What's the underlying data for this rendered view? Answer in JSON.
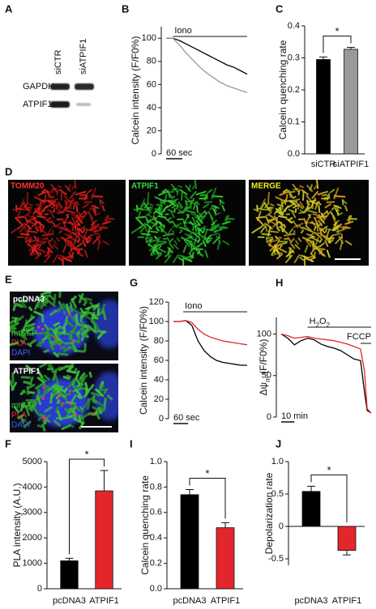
{
  "panel_letters": [
    "A",
    "B",
    "C",
    "D",
    "E",
    "F",
    "G",
    "H",
    "I",
    "J"
  ],
  "blot": {
    "lanes": [
      "siCTR",
      "siATPIF1"
    ],
    "rows": [
      "GAPDH",
      "ATPIF1"
    ]
  },
  "micrograph_d": {
    "channels": [
      "TOMM20",
      "ATPIF1",
      "MERGE"
    ]
  },
  "micrograph_e": {
    "panels": [
      {
        "title": "pcDNA3",
        "stains": [
          "mtGFP",
          "PLA",
          "DAPI"
        ]
      },
      {
        "title": "ATPIF1",
        "stains": [
          "mtGFP",
          "PLA",
          "DAPI"
        ]
      }
    ]
  },
  "chart_data": [
    {
      "type": "line",
      "y_label": "Calcein intensity (F/F0%)",
      "x": [
        0,
        25,
        50,
        75,
        100,
        125,
        150,
        175,
        200,
        225,
        250,
        275,
        300
      ],
      "xlim": [
        0,
        300
      ],
      "ylim": [
        0,
        110
      ],
      "yticks": [
        0,
        20,
        40,
        60,
        80,
        100
      ],
      "series": [
        {
          "color": "#000000",
          "values": [
            100,
            100,
            98,
            95,
            92,
            89,
            86,
            83,
            80,
            77,
            75,
            72,
            69
          ]
        },
        {
          "color": "#999999",
          "values": [
            100,
            100,
            94,
            87,
            81,
            75,
            70,
            66,
            62,
            59,
            57,
            55,
            53
          ]
        }
      ],
      "treatments": [
        {
          "label": "Iono",
          "start": 25,
          "end": 300
        }
      ],
      "scale_bar": {
        "label": "60 sec",
        "length": 60
      }
    },
    {
      "type": "bar",
      "y_label": "Calcein quenching rate",
      "categories": [
        "siCTR",
        "siATPIF1"
      ],
      "values": [
        0.295,
        0.327
      ],
      "errors": [
        0.008,
        0.006
      ],
      "colors": [
        "#000000",
        "#999999"
      ],
      "ylim": [
        0,
        0.4
      ],
      "yticks": [
        {
          "value": 0,
          "label": "0.0"
        },
        0.1,
        0.2,
        0.3,
        0.4
      ],
      "significance": "*"
    },
    {
      "type": "line",
      "y_label": "Calcein intensity (F/F0%)",
      "x": [
        0,
        25,
        50,
        75,
        100,
        125,
        150,
        175,
        200,
        225,
        250,
        275,
        300
      ],
      "xlim": [
        0,
        300
      ],
      "ylim": [
        0,
        120
      ],
      "yticks": [
        0,
        20,
        40,
        60,
        80,
        100,
        120
      ],
      "series": [
        {
          "color": "#000000",
          "values": [
            100,
            100,
            101,
            96,
            80,
            70,
            64,
            60,
            58,
            57,
            56,
            55,
            55
          ]
        },
        {
          "color": "#e3262b",
          "values": [
            100,
            100,
            101,
            99,
            92,
            87,
            84,
            82,
            80,
            79,
            78,
            77,
            76
          ]
        }
      ],
      "treatments": [
        {
          "label": "Iono",
          "start": 40,
          "end": 300
        }
      ],
      "scale_bar": {
        "label": "60 sec",
        "length": 60
      }
    },
    {
      "type": "line",
      "y_label": [
        "Δψ",
        "m",
        " (F/F0%)"
      ],
      "x": [
        0,
        5,
        10,
        15,
        20,
        25,
        30,
        35,
        40,
        45,
        50,
        55,
        60,
        63,
        65,
        68
      ],
      "xlim": [
        0,
        68
      ],
      "ylim": [
        0,
        120
      ],
      "yticks": [
        0,
        50,
        100
      ],
      "series": [
        {
          "color": "#000000",
          "values": [
            100,
            95,
            87,
            92,
            95,
            93,
            88,
            85,
            83,
            80,
            75,
            70,
            68,
            30,
            8,
            5
          ]
        },
        {
          "color": "#e3262b",
          "values": [
            100,
            98,
            95,
            96,
            97,
            95,
            94,
            93,
            92,
            90,
            88,
            85,
            82,
            55,
            10,
            5
          ]
        }
      ],
      "treatments": [
        {
          "label": [
            "H",
            "2",
            "O",
            "2"
          ],
          "start": 20,
          "end": 68
        },
        {
          "label": "FCCP",
          "start": 60,
          "end": 68
        }
      ],
      "scale_bar": {
        "label": "10 min",
        "length": 10
      }
    },
    {
      "type": "bar",
      "y_label": "PLA intensity (A.U.)",
      "categories": [
        "pcDNA3",
        "ATPIF1"
      ],
      "values": [
        1100,
        3850
      ],
      "errors": [
        100,
        800
      ],
      "colors": [
        "#000000",
        "#e3262b"
      ],
      "ylim": [
        0,
        5000
      ],
      "yticks": [
        0,
        1000,
        2000,
        3000,
        4000,
        5000
      ],
      "significance": "*"
    },
    {
      "type": "bar",
      "y_label": "Calcein quenching rate",
      "categories": [
        "pcDNA3",
        "ATPIF1"
      ],
      "values": [
        0.74,
        0.48
      ],
      "errors": [
        0.04,
        0.04
      ],
      "colors": [
        "#000000",
        "#e3262b"
      ],
      "ylim": [
        0,
        1.0
      ],
      "yticks": [
        {
          "value": 0,
          "label": "0.0"
        },
        0.2,
        0.4,
        0.6,
        0.8,
        {
          "value": 1,
          "label": "1.0"
        }
      ],
      "significance": "*"
    },
    {
      "type": "bar",
      "y_label": "Depolarization rate",
      "categories": [
        "pcDNA3",
        "ATPIF1"
      ],
      "values": [
        0.54,
        -0.37
      ],
      "errors": [
        0.08,
        0.07
      ],
      "colors": [
        "#000000",
        "#e3262b"
      ],
      "ylim": [
        -0.6,
        1.0
      ],
      "yticks": [
        -0.5,
        0,
        0.5,
        {
          "value": 1,
          "label": "1.0"
        }
      ],
      "significance": "*"
    }
  ]
}
